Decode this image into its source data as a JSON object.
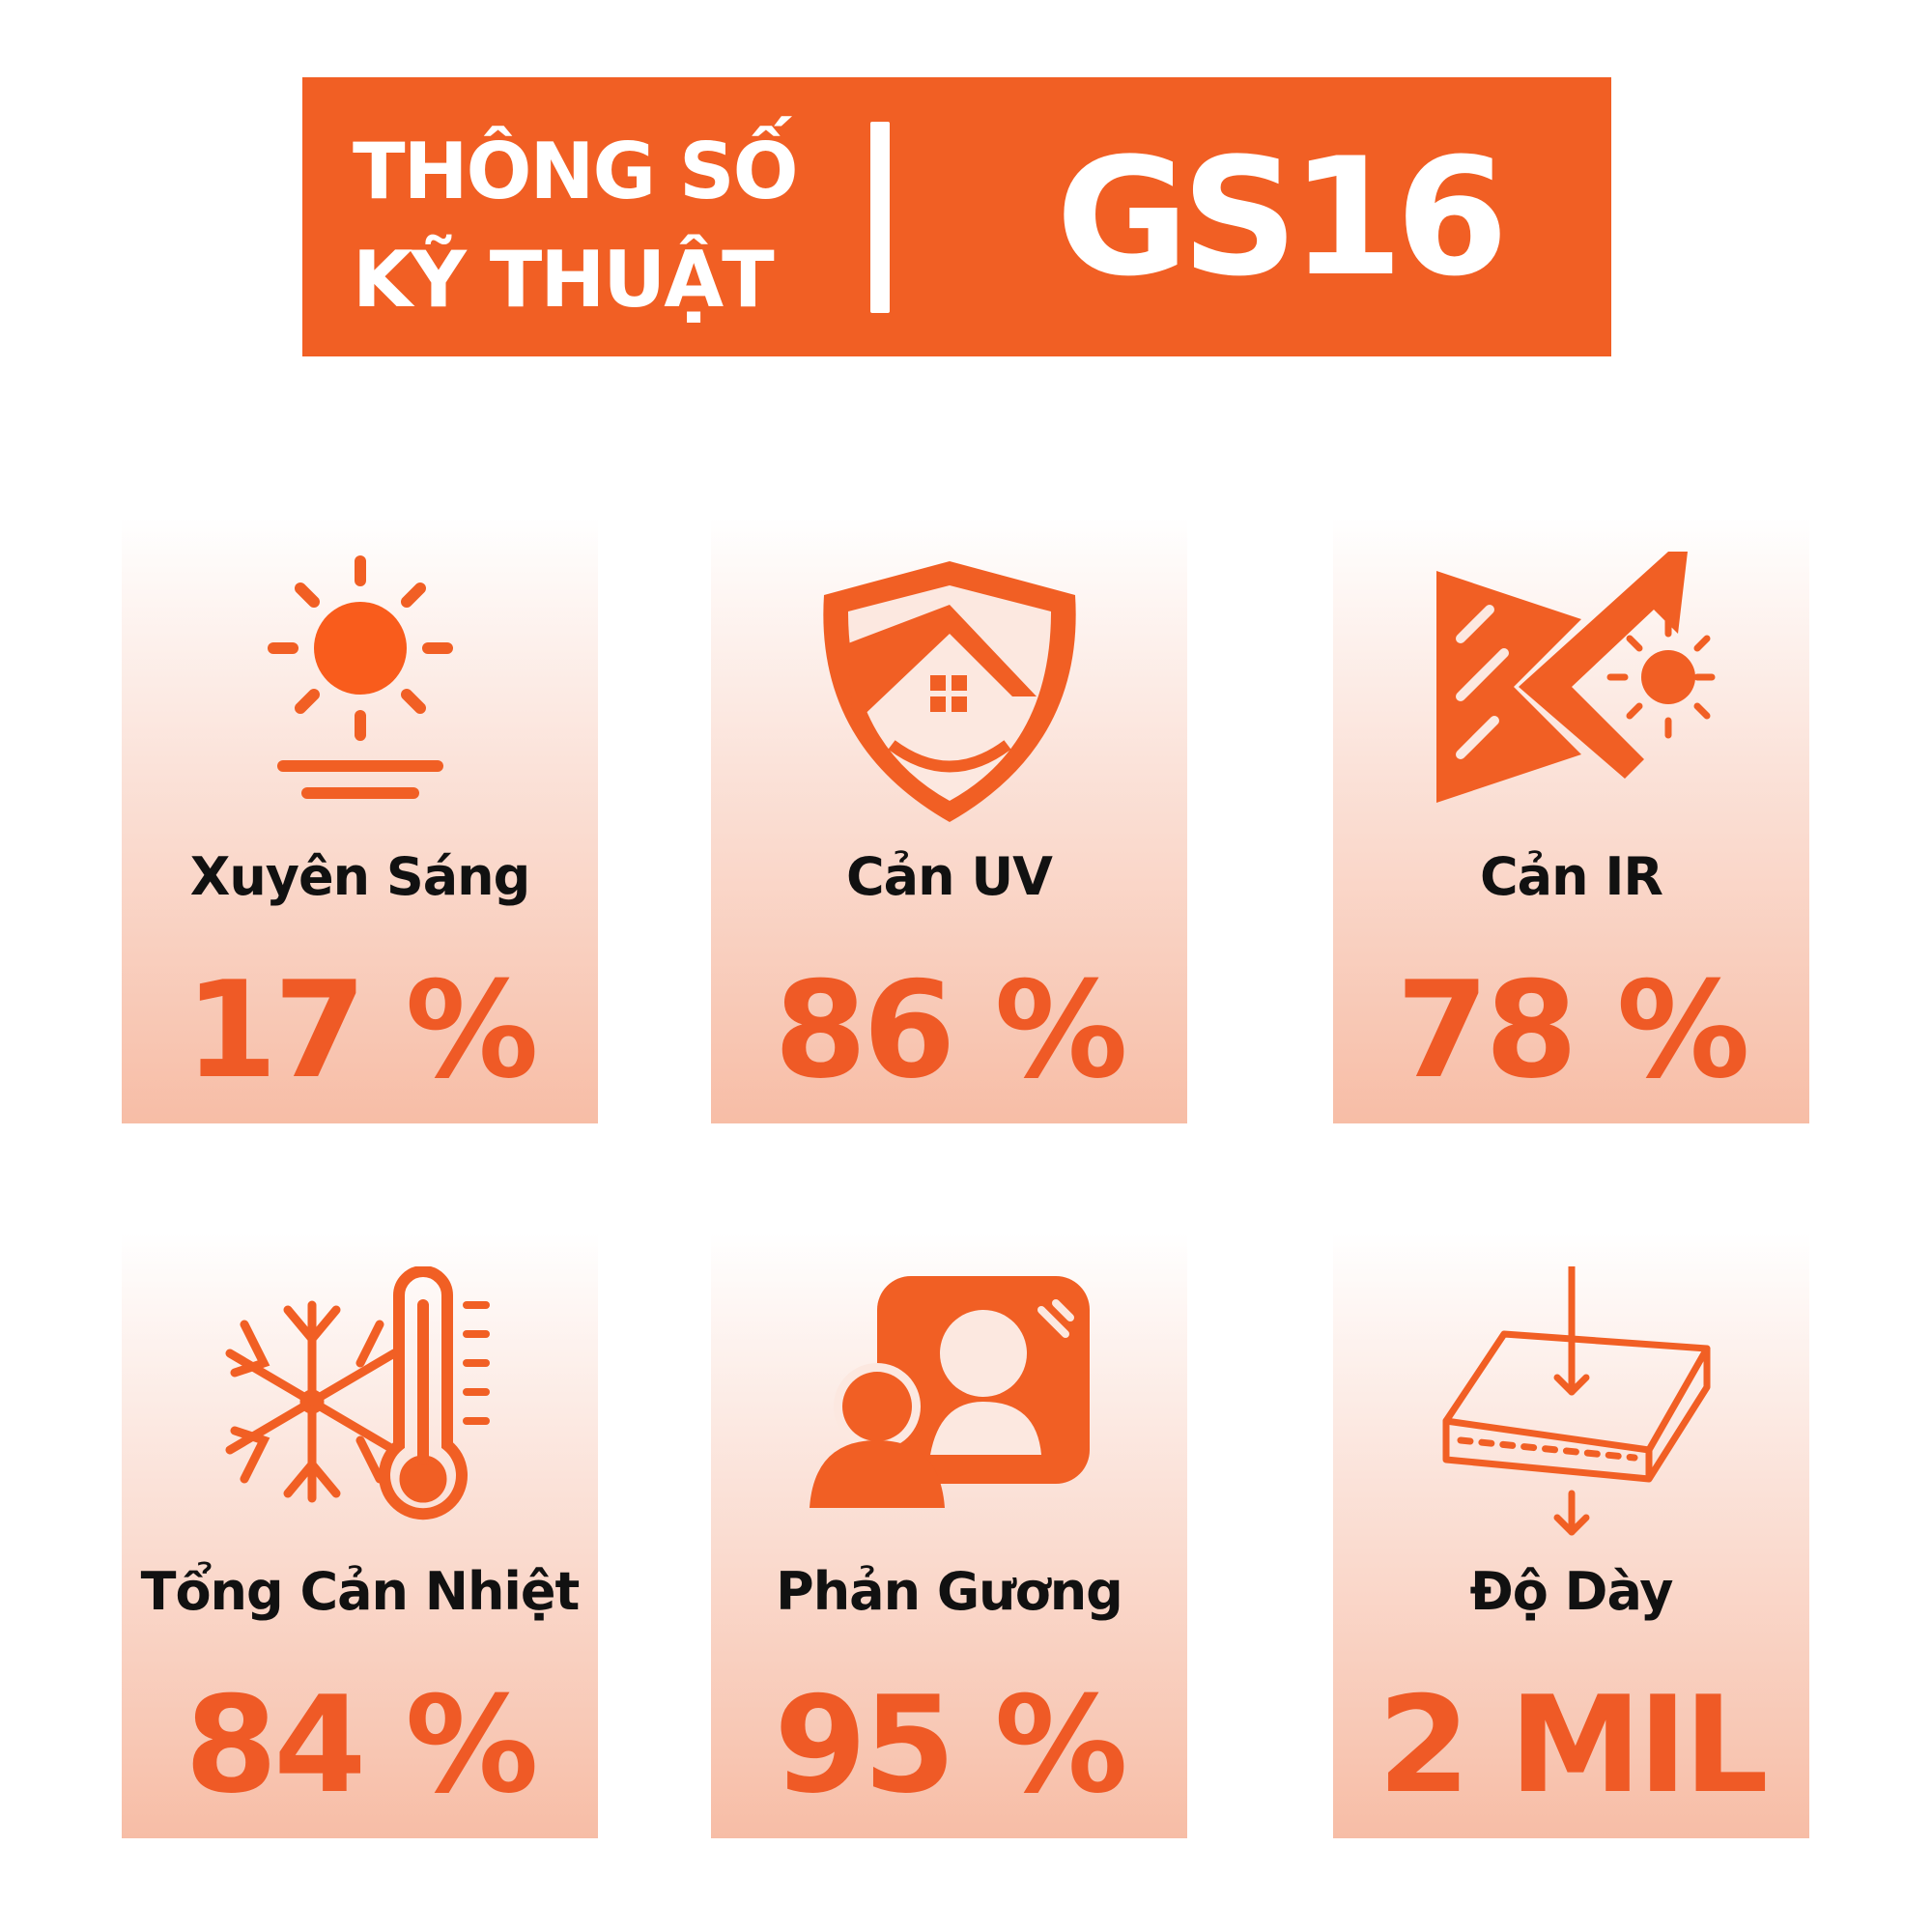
{
  "header": {
    "title_line1": "THÔNG SỐ",
    "title_line2": "KỸ THUẬT",
    "model": "GS16"
  },
  "colors": {
    "accent": "#f15f24",
    "card_top": "#ffffff",
    "card_bottom": "#f7bda6",
    "label": "#111111"
  },
  "specs": [
    {
      "icon": "sun-horizon-icon",
      "label": "Xuyên Sáng",
      "value": "17 %"
    },
    {
      "icon": "shield-house-icon",
      "label": "Cản UV",
      "value": "86 %"
    },
    {
      "icon": "ir-reflect-icon",
      "label": "Cản IR",
      "value": "78 %"
    },
    {
      "icon": "snowflake-thermometer-icon",
      "label": "Tổng Cản Nhiệt",
      "value": "84 %"
    },
    {
      "icon": "mirror-reflection-icon",
      "label": "Phản Gương",
      "value": "95 %"
    },
    {
      "icon": "thickness-layer-icon",
      "label": "Độ Dày",
      "value": "2 MIL"
    }
  ]
}
